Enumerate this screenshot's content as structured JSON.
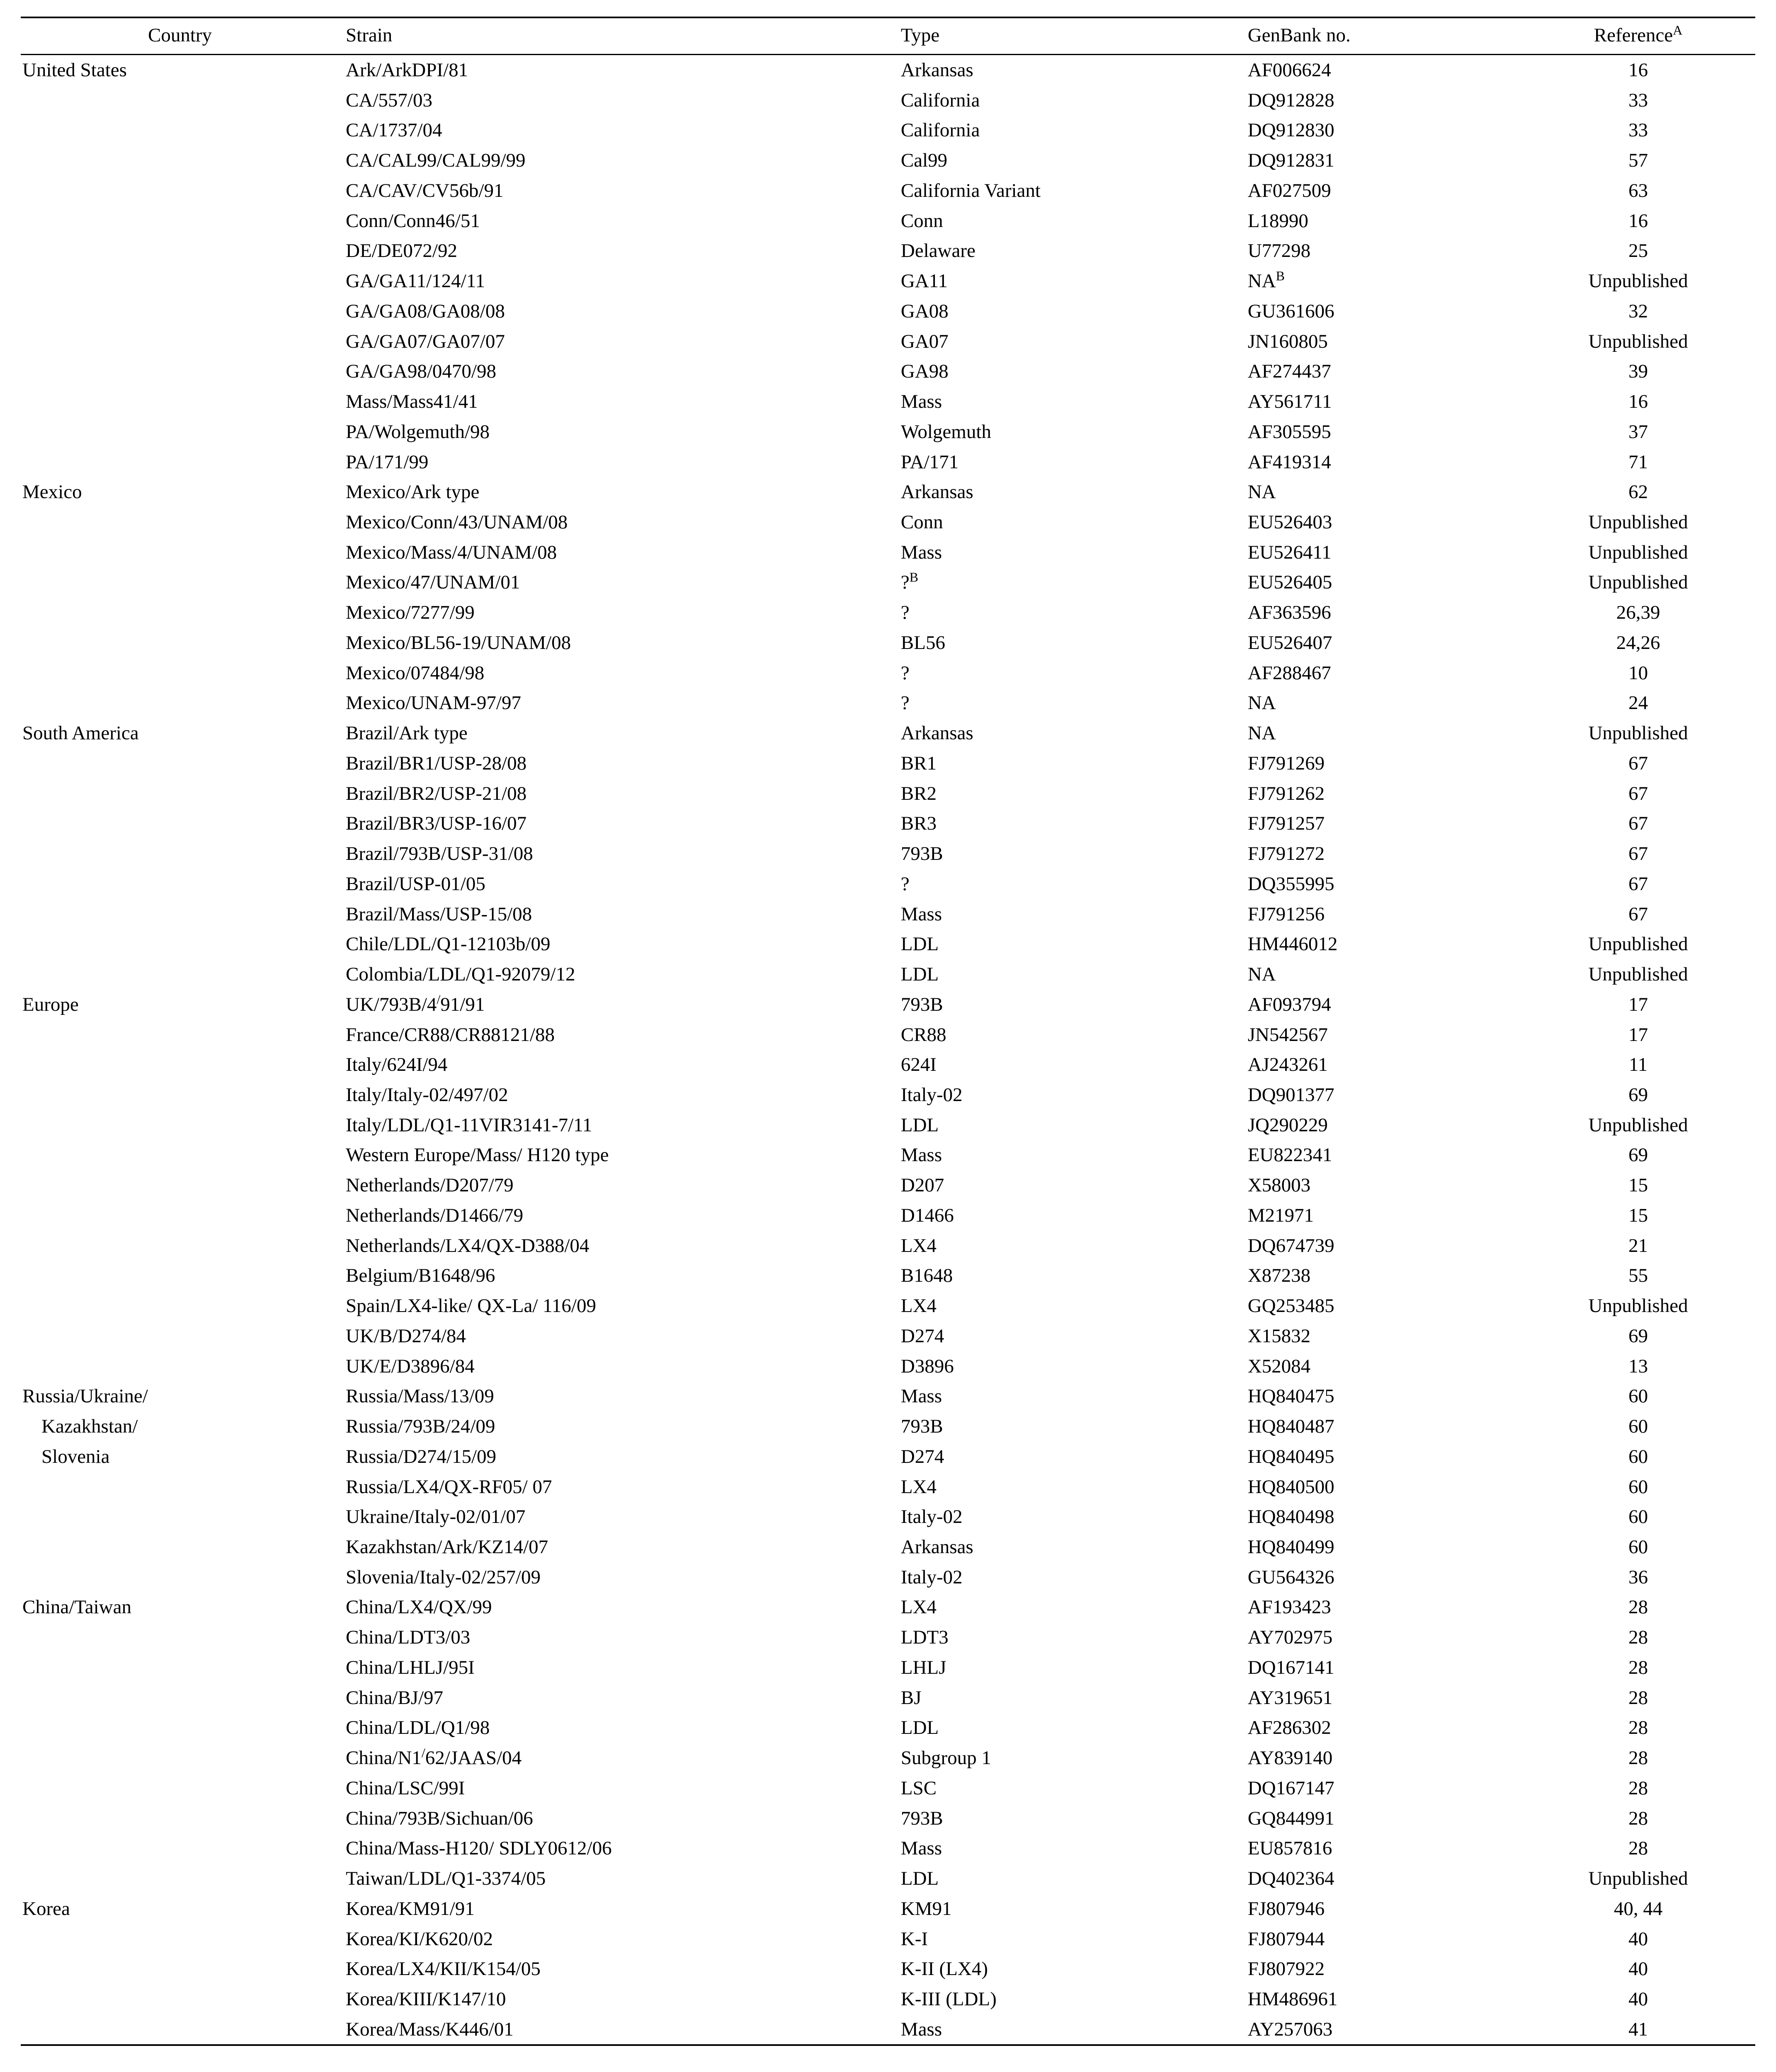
{
  "headers": {
    "country": "Country",
    "strain": "Strain",
    "type": "Type",
    "genbank": "GenBank no.",
    "reference": "Reference",
    "ref_sup": "A"
  },
  "rows": [
    {
      "country": "United States",
      "strain": "Ark/ArkDPI/81",
      "type": "Arkansas",
      "genbank": "AF006624",
      "ref": "16"
    },
    {
      "country": "",
      "strain": "CA/557/03",
      "type": "California",
      "genbank": "DQ912828",
      "ref": "33"
    },
    {
      "country": "",
      "strain": "CA/1737/04",
      "type": "California",
      "genbank": "DQ912830",
      "ref": "33"
    },
    {
      "country": "",
      "strain": "CA/CAL99/CAL99/99",
      "type": "Cal99",
      "genbank": "DQ912831",
      "ref": "57"
    },
    {
      "country": "",
      "strain": "CA/CAV/CV56b/91",
      "type": "California Variant",
      "genbank": "AF027509",
      "ref": "63"
    },
    {
      "country": "",
      "strain": "Conn/Conn46/51",
      "type": "Conn",
      "genbank": "L18990",
      "ref": "16"
    },
    {
      "country": "",
      "strain": "DE/DE072/92",
      "type": "Delaware",
      "genbank": "U77298",
      "ref": "25"
    },
    {
      "country": "",
      "strain": "GA/GA11/124/11",
      "type": "GA11",
      "genbank": "NA",
      "genbank_sup": "B",
      "ref": "Unpublished"
    },
    {
      "country": "",
      "strain": "GA/GA08/GA08/08",
      "type": "GA08",
      "genbank": "GU361606",
      "ref": "32"
    },
    {
      "country": "",
      "strain": "GA/GA07/GA07/07",
      "type": "GA07",
      "genbank": "JN160805",
      "ref": "Unpublished"
    },
    {
      "country": "",
      "strain": "GA/GA98/0470/98",
      "type": "GA98",
      "genbank": "AF274437",
      "ref": "39"
    },
    {
      "country": "",
      "strain": "Mass/Mass41/41",
      "type": "Mass",
      "genbank": "AY561711",
      "ref": "16"
    },
    {
      "country": "",
      "strain": "PA/Wolgemuth/98",
      "type": "Wolgemuth",
      "genbank": "AF305595",
      "ref": "37"
    },
    {
      "country": "",
      "strain": "PA/171/99",
      "type": "PA/171",
      "genbank": "AF419314",
      "ref": "71"
    },
    {
      "country": "Mexico",
      "strain": "Mexico/Ark type",
      "type": "Arkansas",
      "genbank": "NA",
      "ref": "62"
    },
    {
      "country": "",
      "strain": "Mexico/Conn/43/UNAM/08",
      "type": "Conn",
      "genbank": "EU526403",
      "ref": "Unpublished"
    },
    {
      "country": "",
      "strain": "Mexico/Mass/4/UNAM/08",
      "type": "Mass",
      "genbank": "EU526411",
      "ref": "Unpublished"
    },
    {
      "country": "",
      "strain": "Mexico/47/UNAM/01",
      "type": "?",
      "type_sup": "B",
      "genbank": "EU526405",
      "ref": "Unpublished"
    },
    {
      "country": "",
      "strain": "Mexico/7277/99",
      "type": "?",
      "genbank": "AF363596",
      "ref": "26,39"
    },
    {
      "country": "",
      "strain": "Mexico/BL56-19/UNAM/08",
      "type": "BL56",
      "genbank": "EU526407",
      "ref": "24,26"
    },
    {
      "country": "",
      "strain": "Mexico/07484/98",
      "type": "?",
      "genbank": "AF288467",
      "ref": "10"
    },
    {
      "country": "",
      "strain": "Mexico/UNAM-97/97",
      "type": "?",
      "genbank": "NA",
      "ref": "24"
    },
    {
      "country": "South America",
      "strain": "Brazil/Ark type",
      "type": "Arkansas",
      "genbank": "NA",
      "ref": "Unpublished"
    },
    {
      "country": "",
      "strain": "Brazil/BR1/USP-28/08",
      "type": "BR1",
      "genbank": "FJ791269",
      "ref": "67"
    },
    {
      "country": "",
      "strain": "Brazil/BR2/USP-21/08",
      "type": "BR2",
      "genbank": "FJ791262",
      "ref": "67"
    },
    {
      "country": "",
      "strain": "Brazil/BR3/USP-16/07",
      "type": "BR3",
      "genbank": "FJ791257",
      "ref": "67"
    },
    {
      "country": "",
      "strain": "Brazil/793B/USP-31/08",
      "type": "793B",
      "genbank": "FJ791272",
      "ref": "67"
    },
    {
      "country": "",
      "strain": "Brazil/USP-01/05",
      "type": "?",
      "genbank": "DQ355995",
      "ref": "67"
    },
    {
      "country": "",
      "strain": "Brazil/Mass/USP-15/08",
      "type": "Mass",
      "genbank": "FJ791256",
      "ref": "67"
    },
    {
      "country": "",
      "strain": "Chile/LDL/Q1-12103b/09",
      "type": "LDL",
      "genbank": "HM446012",
      "ref": "Unpublished"
    },
    {
      "country": "",
      "strain": "Colombia/LDL/Q1-92079/12",
      "type": "LDL",
      "genbank": "NA",
      "ref": "Unpublished"
    },
    {
      "country": "Europe",
      "strain": "UK/793B/4/91/91",
      "strain_sup_pos": "UK/793B/4",
      "strain_sup_after": "91/91",
      "strain_sup": "/",
      "type": "793B",
      "genbank": "AF093794",
      "ref": "17"
    },
    {
      "country": "",
      "strain": "France/CR88/CR88121/88",
      "type": "CR88",
      "genbank": "JN542567",
      "ref": "17"
    },
    {
      "country": "",
      "strain": "Italy/624I/94",
      "type": "624I",
      "genbank": "AJ243261",
      "ref": "11"
    },
    {
      "country": "",
      "strain": "Italy/Italy-02/497/02",
      "type": "Italy-02",
      "genbank": "DQ901377",
      "ref": "69"
    },
    {
      "country": "",
      "strain": "Italy/LDL/Q1-11VIR3141-7/11",
      "type": "LDL",
      "genbank": "JQ290229",
      "ref": "Unpublished"
    },
    {
      "country": "",
      "strain": "Western Europe/Mass/ H120 type",
      "type": "Mass",
      "genbank": "EU822341",
      "ref": "69"
    },
    {
      "country": "",
      "strain": "Netherlands/D207/79",
      "type": "D207",
      "genbank": "X58003",
      "ref": "15"
    },
    {
      "country": "",
      "strain": "Netherlands/D1466/79",
      "type": "D1466",
      "genbank": "M21971",
      "ref": "15"
    },
    {
      "country": "",
      "strain": "Netherlands/LX4/QX-D388/04",
      "type": "LX4",
      "genbank": "DQ674739",
      "ref": "21"
    },
    {
      "country": "",
      "strain": "Belgium/B1648/96",
      "type": "B1648",
      "genbank": "X87238",
      "ref": "55"
    },
    {
      "country": "",
      "strain": "Spain/LX4-like/ QX-La/ 116/09",
      "type": "LX4",
      "genbank": "GQ253485",
      "ref": "Unpublished"
    },
    {
      "country": "",
      "strain": "UK/B/D274/84",
      "type": "D274",
      "genbank": "X15832",
      "ref": "69"
    },
    {
      "country": "",
      "strain": "UK/E/D3896/84",
      "type": "D3896",
      "genbank": "X52084",
      "ref": "13"
    },
    {
      "country": "Russia/Ukraine/",
      "strain": "Russia/Mass/13/09",
      "type": "Mass",
      "genbank": "HQ840475",
      "ref": "60"
    },
    {
      "country": "Kazakhstan/",
      "country_sub": true,
      "strain": "Russia/793B/24/09",
      "type": "793B",
      "genbank": "HQ840487",
      "ref": "60"
    },
    {
      "country": "Slovenia",
      "country_sub": true,
      "strain": "Russia/D274/15/09",
      "type": "D274",
      "genbank": "HQ840495",
      "ref": "60"
    },
    {
      "country": "",
      "strain": "Russia/LX4/QX-RF05/ 07",
      "type": "LX4",
      "genbank": "HQ840500",
      "ref": "60"
    },
    {
      "country": "",
      "strain": "Ukraine/Italy-02/01/07",
      "type": "Italy-02",
      "genbank": "HQ840498",
      "ref": "60"
    },
    {
      "country": "",
      "strain": "Kazakhstan/Ark/KZ14/07",
      "type": "Arkansas",
      "genbank": "HQ840499",
      "ref": "60"
    },
    {
      "country": "",
      "strain": "Slovenia/Italy-02/257/09",
      "type": "Italy-02",
      "genbank": "GU564326",
      "ref": "36"
    },
    {
      "country": "China/Taiwan",
      "strain": "China/LX4/QX/99",
      "type": "LX4",
      "genbank": "AF193423",
      "ref": "28"
    },
    {
      "country": "",
      "strain": "China/LDT3/03",
      "type": "LDT3",
      "genbank": "AY702975",
      "ref": "28"
    },
    {
      "country": "",
      "strain": "China/LHLJ/95I",
      "type": "LHLJ",
      "genbank": "DQ167141",
      "ref": "28"
    },
    {
      "country": "",
      "strain": "China/BJ/97",
      "type": "BJ",
      "genbank": "AY319651",
      "ref": "28"
    },
    {
      "country": "",
      "strain": "China/LDL/Q1/98",
      "type": "LDL",
      "genbank": "AF286302",
      "ref": "28"
    },
    {
      "country": "",
      "strain": "China/N1/62/JAAS/04",
      "strain_sup_pos": "China/N1",
      "strain_sup_after": "62/JAAS/04",
      "strain_sup": "/",
      "type": "Subgroup 1",
      "genbank": "AY839140",
      "ref": "28"
    },
    {
      "country": "",
      "strain": "China/LSC/99I",
      "type": "LSC",
      "genbank": "DQ167147",
      "ref": "28"
    },
    {
      "country": "",
      "strain": "China/793B/Sichuan/06",
      "type": "793B",
      "genbank": "GQ844991",
      "ref": "28"
    },
    {
      "country": "",
      "strain": "China/Mass-H120/ SDLY0612/06",
      "type": "Mass",
      "genbank": "EU857816",
      "ref": "28"
    },
    {
      "country": "",
      "strain": "Taiwan/LDL/Q1-3374/05",
      "type": "LDL",
      "genbank": "DQ402364",
      "ref": "Unpublished"
    },
    {
      "country": "Korea",
      "strain": "Korea/KM91/91",
      "type": "KM91",
      "genbank": "FJ807946",
      "ref": "40, 44"
    },
    {
      "country": "",
      "strain": "Korea/KI/K620/02",
      "type": "K-I",
      "genbank": "FJ807944",
      "ref": "40"
    },
    {
      "country": "",
      "strain": "Korea/LX4/KII/K154/05",
      "type": "K-II (LX4)",
      "genbank": "FJ807922",
      "ref": "40"
    },
    {
      "country": "",
      "strain": "Korea/KIII/K147/10",
      "type": "K-III (LDL)",
      "genbank": "HM486961",
      "ref": "40"
    },
    {
      "country": "",
      "strain": "Korea/Mass/K446/01",
      "type": "Mass",
      "genbank": "AY257063",
      "ref": "41"
    }
  ]
}
